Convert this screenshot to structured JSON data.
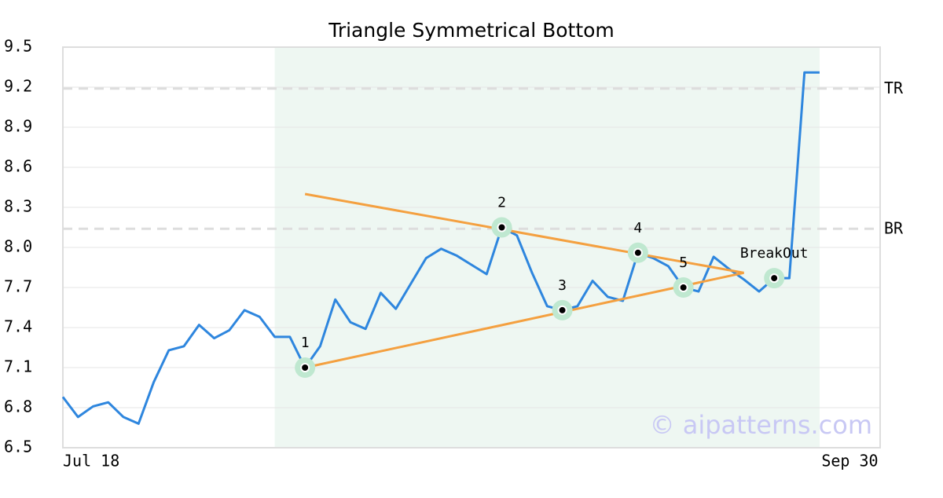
{
  "chart_data": {
    "type": "line",
    "title": "Triangle Symmetrical Bottom",
    "values": [
      6.88,
      6.73,
      6.81,
      6.84,
      6.73,
      6.68,
      6.99,
      7.23,
      7.26,
      7.42,
      7.32,
      7.38,
      7.53,
      7.48,
      7.33,
      7.33,
      7.1,
      7.26,
      7.61,
      7.44,
      7.39,
      7.66,
      7.54,
      7.73,
      7.92,
      7.99,
      7.94,
      7.87,
      7.8,
      8.15,
      8.09,
      7.81,
      7.56,
      7.53,
      7.56,
      7.75,
      7.63,
      7.6,
      7.96,
      7.92,
      7.86,
      7.7,
      7.67,
      7.93,
      7.84,
      7.76,
      7.67,
      7.77,
      7.77,
      9.31,
      9.31
    ],
    "color": "#2e86de",
    "xlim": [
      0,
      54
    ],
    "xticks": [
      {
        "value": 0,
        "label": "Jul 18"
      },
      {
        "value": 52,
        "label": "Sep 30"
      }
    ],
    "ylim": [
      6.5,
      9.5
    ],
    "yticks": [
      6.5,
      6.8,
      7.1,
      7.4,
      7.7,
      {
        "value": 8,
        "label": "8.0"
      },
      8.3,
      8.6,
      8.9,
      9.2,
      9.5
    ],
    "grid": true,
    "pattern_range": [
      14,
      50
    ],
    "levels": [
      {
        "name": "TR",
        "value": 9.19
      },
      {
        "name": "BR",
        "value": 8.14
      }
    ],
    "trendlines": [
      {
        "x": [
          16,
          45
        ],
        "y": [
          8.4,
          7.81
        ]
      },
      {
        "x": [
          16,
          45
        ],
        "y": [
          7.1,
          7.81
        ]
      }
    ],
    "points": [
      {
        "label": "1",
        "x": 16,
        "y": 7.1
      },
      {
        "label": "2",
        "x": 29,
        "y": 8.15
      },
      {
        "label": "3",
        "x": 33,
        "y": 7.53
      },
      {
        "label": "4",
        "x": 38,
        "y": 7.96
      },
      {
        "label": "5",
        "x": 41,
        "y": 7.7
      },
      {
        "label": "BreakOut",
        "x": 47,
        "y": 7.77
      }
    ],
    "watermark": "© aipatterns.com"
  }
}
